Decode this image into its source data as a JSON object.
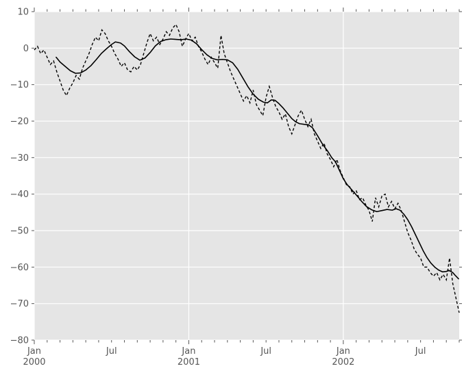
{
  "chart_data": {
    "type": "line",
    "title": "",
    "xlabel": "",
    "ylabel": "",
    "legend": null,
    "grid": true,
    "background_color": "#e5e5e5",
    "figure_color": "#ffffff",
    "grid_color": "#ffffff",
    "tick_color": "#555555",
    "label_color": "#555555",
    "series_color": "#000000",
    "x_unit": "months since Jan 2000",
    "xlim_months": [
      0,
      33
    ],
    "ylim": [
      -80,
      10
    ],
    "yticks": [
      {
        "value": 10,
        "label": "10"
      },
      {
        "value": 0,
        "label": "0"
      },
      {
        "value": -10,
        "label": "−10"
      },
      {
        "value": -20,
        "label": "−20"
      },
      {
        "value": -30,
        "label": "−30"
      },
      {
        "value": -40,
        "label": "−40"
      },
      {
        "value": -50,
        "label": "−50"
      },
      {
        "value": -60,
        "label": "−60"
      },
      {
        "value": -70,
        "label": "−70"
      },
      {
        "value": -80,
        "label": "−80"
      }
    ],
    "xticks_major": [
      {
        "month": 0,
        "label": "Jan",
        "year": "2000"
      },
      {
        "month": 12,
        "label": "Jan",
        "year": "2001"
      },
      {
        "month": 24,
        "label": "Jan",
        "year": "2002"
      }
    ],
    "xticks_minor_labeled": [
      {
        "month": 6,
        "label": "Jul"
      },
      {
        "month": 18,
        "label": "Jul"
      },
      {
        "month": 30,
        "label": "Jul"
      }
    ],
    "xticks_minor_months": [
      1,
      2,
      3,
      4,
      5,
      6,
      7,
      8,
      9,
      10,
      11,
      13,
      14,
      15,
      16,
      17,
      18,
      19,
      20,
      21,
      22,
      23,
      25,
      26,
      27,
      28,
      29,
      30,
      31,
      32,
      33
    ],
    "grid_vertical_months": [
      0,
      12,
      24
    ],
    "series": [
      {
        "id": "noisy-daily-series",
        "line_style": "dashed",
        "t_start": 0,
        "t_step": 0.25,
        "values": [
          -0.5,
          0.5,
          -1.5,
          -0.5,
          -2.5,
          -4.5,
          -3.5,
          -6.5,
          -9.0,
          -11.5,
          -13.0,
          -11.0,
          -9.5,
          -7.5,
          -8.5,
          -5.5,
          -3.5,
          -1.5,
          1.0,
          3.0,
          2.0,
          5.0,
          4.0,
          2.0,
          0.5,
          -1.5,
          -3.0,
          -5.0,
          -4.0,
          -6.0,
          -6.5,
          -5.0,
          -6.0,
          -4.5,
          -1.5,
          1.5,
          4.0,
          2.0,
          3.0,
          1.0,
          2.5,
          4.5,
          3.5,
          5.5,
          6.5,
          4.5,
          0.5,
          2.5,
          4.0,
          2.0,
          3.0,
          0.5,
          -1.0,
          -3.0,
          -4.5,
          -2.5,
          -4.0,
          -5.5,
          3.5,
          -1.5,
          -4.0,
          -6.5,
          -8.5,
          -10.5,
          -12.5,
          -14.5,
          -13.0,
          -15.0,
          -11.5,
          -15.5,
          -17.0,
          -18.5,
          -13.5,
          -10.5,
          -13.5,
          -16.0,
          -17.5,
          -19.5,
          -18.0,
          -21.5,
          -23.5,
          -21.0,
          -18.5,
          -17.0,
          -19.5,
          -21.5,
          -19.5,
          -23.5,
          -25.5,
          -27.5,
          -26.0,
          -29.0,
          -30.5,
          -32.5,
          -30.5,
          -33.5,
          -35.5,
          -37.5,
          -38.0,
          -40.0,
          -39.0,
          -41.5,
          -41.0,
          -43.0,
          -44.5,
          -47.5,
          -41.0,
          -43.5,
          -40.5,
          -40.0,
          -43.5,
          -42.0,
          -44.0,
          -42.5,
          -44.5,
          -47.5,
          -50.5,
          -52.5,
          -55.0,
          -56.5,
          -57.5,
          -60.0,
          -60.0,
          -61.5,
          -62.5,
          -61.5,
          -63.5,
          -62.0,
          -63.5,
          -57.5,
          -64.5,
          -68.5,
          -72.5
        ]
      },
      {
        "id": "smoothed-rolling-mean-series",
        "line_style": "solid",
        "points": [
          [
            1.7,
            -2.5
          ],
          [
            2.0,
            -3.8
          ],
          [
            2.4,
            -5.0
          ],
          [
            2.8,
            -6.2
          ],
          [
            3.2,
            -6.9
          ],
          [
            3.6,
            -6.8
          ],
          [
            4.0,
            -6.0
          ],
          [
            4.4,
            -4.8
          ],
          [
            4.8,
            -3.2
          ],
          [
            5.2,
            -1.5
          ],
          [
            5.6,
            -0.2
          ],
          [
            6.0,
            1.0
          ],
          [
            6.3,
            1.7
          ],
          [
            6.7,
            1.4
          ],
          [
            7.0,
            0.6
          ],
          [
            7.4,
            -1.0
          ],
          [
            7.8,
            -2.4
          ],
          [
            8.2,
            -3.3
          ],
          [
            8.6,
            -2.7
          ],
          [
            9.0,
            -1.2
          ],
          [
            9.4,
            0.6
          ],
          [
            9.8,
            1.8
          ],
          [
            10.2,
            2.3
          ],
          [
            10.6,
            2.5
          ],
          [
            11.0,
            2.4
          ],
          [
            11.4,
            2.3
          ],
          [
            11.8,
            2.5
          ],
          [
            12.2,
            2.2
          ],
          [
            12.6,
            1.2
          ],
          [
            13.0,
            -0.4
          ],
          [
            13.4,
            -1.8
          ],
          [
            13.8,
            -2.8
          ],
          [
            14.2,
            -3.2
          ],
          [
            14.6,
            -3.1
          ],
          [
            15.0,
            -3.2
          ],
          [
            15.4,
            -4.0
          ],
          [
            15.8,
            -5.8
          ],
          [
            16.2,
            -8.2
          ],
          [
            16.6,
            -10.6
          ],
          [
            17.0,
            -12.6
          ],
          [
            17.4,
            -14.0
          ],
          [
            17.8,
            -14.8
          ],
          [
            18.1,
            -15.0
          ],
          [
            18.4,
            -14.2
          ],
          [
            18.7,
            -14.3
          ],
          [
            19.0,
            -15.2
          ],
          [
            19.3,
            -16.3
          ],
          [
            19.7,
            -18.0
          ],
          [
            20.0,
            -19.3
          ],
          [
            20.3,
            -20.2
          ],
          [
            20.6,
            -20.7
          ],
          [
            21.0,
            -20.9
          ],
          [
            21.3,
            -21.0
          ],
          [
            21.6,
            -21.8
          ],
          [
            22.0,
            -24.0
          ],
          [
            22.4,
            -26.4
          ],
          [
            22.8,
            -28.3
          ],
          [
            23.1,
            -30.0
          ],
          [
            23.4,
            -31.2
          ],
          [
            23.7,
            -33.5
          ],
          [
            24.0,
            -35.8
          ],
          [
            24.3,
            -37.4
          ],
          [
            24.6,
            -38.6
          ],
          [
            25.0,
            -40.2
          ],
          [
            25.4,
            -41.9
          ],
          [
            25.8,
            -43.4
          ],
          [
            26.2,
            -44.3
          ],
          [
            26.6,
            -44.8
          ],
          [
            27.0,
            -44.5
          ],
          [
            27.4,
            -44.2
          ],
          [
            27.8,
            -44.4
          ],
          [
            28.1,
            -44.0
          ],
          [
            28.4,
            -44.4
          ],
          [
            28.7,
            -45.5
          ],
          [
            29.0,
            -47.0
          ],
          [
            29.3,
            -48.9
          ],
          [
            29.6,
            -51.1
          ],
          [
            29.9,
            -53.3
          ],
          [
            30.2,
            -55.5
          ],
          [
            30.5,
            -57.4
          ],
          [
            30.8,
            -58.9
          ],
          [
            31.1,
            -60.0
          ],
          [
            31.4,
            -60.8
          ],
          [
            31.7,
            -61.3
          ],
          [
            32.0,
            -61.2
          ],
          [
            32.2,
            -60.9
          ],
          [
            32.5,
            -61.5
          ],
          [
            32.7,
            -62.3
          ],
          [
            32.95,
            -63.2
          ]
        ]
      }
    ]
  }
}
